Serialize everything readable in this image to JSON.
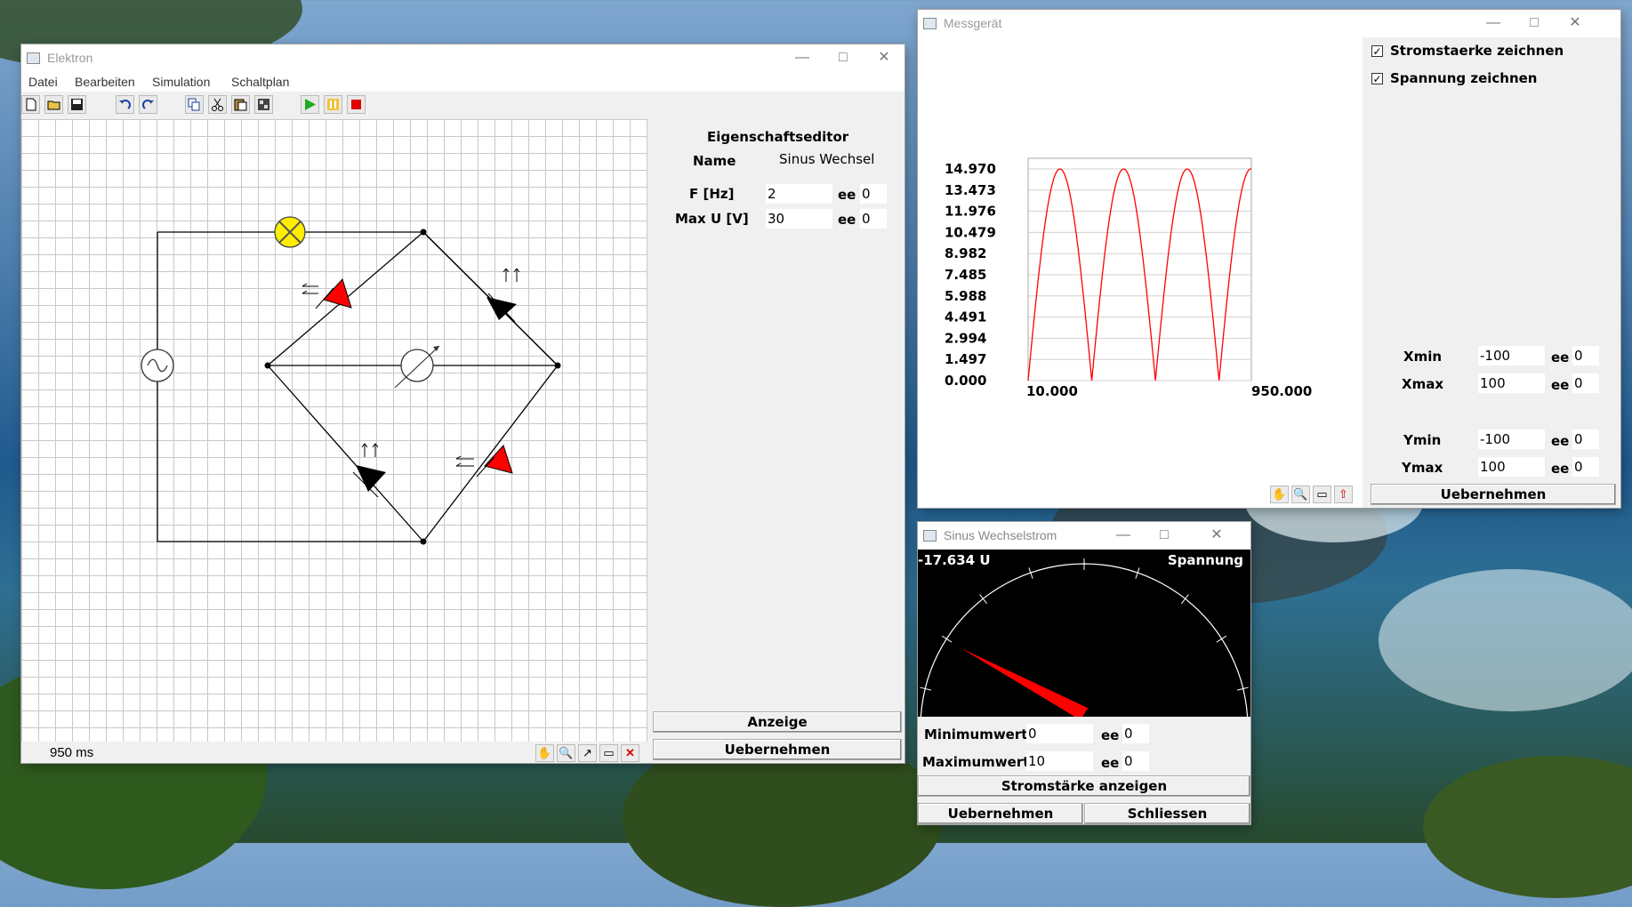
{
  "elektron": {
    "title": "Elektron",
    "menu": [
      "Datei",
      "Bearbeiten",
      "Simulation",
      "Schaltplan"
    ],
    "toolbar_icons": [
      "new-file-icon",
      "open-folder-icon",
      "save-icon",
      "undo-icon",
      "redo-icon",
      "copy-icon",
      "cut-icon",
      "paste-icon",
      "select-all-icon",
      "play-icon",
      "pause-icon",
      "stop-icon"
    ],
    "status_time": "950 ms",
    "bottom_icons": [
      "hand-icon",
      "zoom-icon",
      "add-element-icon",
      "select-rect-icon",
      "delete-icon"
    ],
    "editor": {
      "title": "Eigenschaftseditor",
      "name_label": "Name",
      "name_value": "Sinus Wechsel",
      "freq_label": "F [Hz]",
      "freq_value": "2",
      "freq_exp_label": "ee",
      "freq_exp_value": "0",
      "volt_label": "Max U [V]",
      "volt_value": "30",
      "volt_exp_label": "ee",
      "volt_exp_value": "0",
      "anzeige_button": "Anzeige",
      "apply_button": "Uebernehmen"
    }
  },
  "messgeraet": {
    "title": "Messgerät",
    "checkbox_current": "Stromstaerke zeichnen",
    "checkbox_voltage": "Spannung zeichnen",
    "checked_mark": "✓",
    "y_ticks": [
      "14.970",
      "13.473",
      "11.976",
      "10.479",
      "8.982",
      "7.485",
      "5.988",
      "4.491",
      "2.994",
      "1.497",
      "0.000"
    ],
    "x_min_label": "10.000",
    "x_max_label": "950.000",
    "xmin_label": "Xmin",
    "xmin_value": "-100",
    "xmin_ee": "ee",
    "xmin_exp": "0",
    "xmax_label": "Xmax",
    "xmax_value": "100",
    "xmax_ee": "ee",
    "xmax_exp": "0",
    "ymin_label": "Ymin",
    "ymin_value": "-100",
    "ymin_ee": "ee",
    "ymin_exp": "0",
    "ymax_label": "Ymax",
    "ymax_value": "100",
    "ymax_ee": "ee",
    "ymax_exp": "0",
    "apply_button": "Uebernehmen",
    "curve_color": "#ff0000",
    "chart_icons": [
      "hand-icon",
      "zoom-icon",
      "select-rect-icon",
      "export-icon"
    ]
  },
  "chart_data": {
    "type": "line",
    "title": "",
    "xlabel": "",
    "ylabel": "",
    "xlim": [
      10,
      950
    ],
    "ylim": [
      0,
      14.97
    ],
    "series": [
      {
        "name": "Spannung",
        "description": "rectified sine |sin|, 2 Hz, 4 half-waves visible",
        "x": [
          10,
          60,
          127,
          194,
          261,
          328,
          395,
          462,
          529,
          596,
          663,
          730,
          797,
          864,
          931,
          950
        ],
        "values": [
          0,
          13.0,
          14.97,
          13.0,
          0,
          13.0,
          14.97,
          13.0,
          0,
          13.0,
          14.97,
          13.0,
          0,
          13.0,
          14.97,
          10.5
        ]
      }
    ],
    "grid": true
  },
  "sinus": {
    "title": "Sinus Wechselstrom",
    "reading": "-17.634 U",
    "mode": "Spannung",
    "gauge_fraction": 0.2,
    "needle_color": "#ff0000",
    "min_label": "Minimumwert",
    "min_value": "0",
    "min_ee": "ee",
    "min_exp": "0",
    "max_label": "Maximumwert",
    "max_value": "10",
    "max_ee": "ee",
    "max_exp": "0",
    "toggle_button": "Stromstärke anzeigen",
    "apply_button": "Uebernehmen",
    "close_button": "Schliessen"
  }
}
